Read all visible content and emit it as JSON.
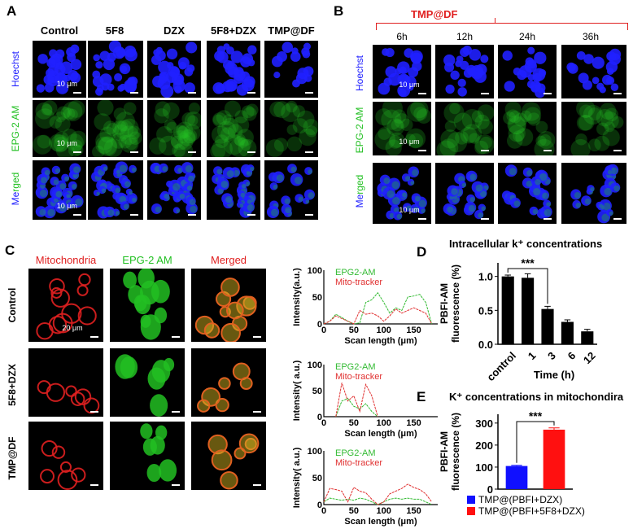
{
  "panels": {
    "A": {
      "label": "A",
      "columns": [
        "Control",
        "5F8",
        "DZX",
        "5F8+DZX",
        "TMP@DF"
      ],
      "rows": [
        {
          "label": "Hoechst",
          "channel": "blue"
        },
        {
          "label": "EPG-2 AM",
          "channel": "green"
        },
        {
          "label": "Merged",
          "channel": "merged"
        }
      ],
      "scale_label": "10 μm"
    },
    "B": {
      "label": "B",
      "group_label": "TMP@DF",
      "columns": [
        "6h",
        "12h",
        "24h",
        "36h"
      ],
      "rows": [
        {
          "label": "Hoechst",
          "channel": "blue"
        },
        {
          "label": "EPG-2 AM",
          "channel": "green"
        },
        {
          "label": "Merged",
          "channel": "merged"
        }
      ],
      "scale_label": "10 μm"
    },
    "C": {
      "label": "C",
      "columns": [
        "Mitochondria",
        "EPG-2 AM",
        "Merged"
      ],
      "rows": [
        "Control",
        "5F8+DZX",
        "TMP@DF"
      ],
      "scale_label": "20 μm"
    },
    "D": {
      "label": "D"
    },
    "E": {
      "label": "E"
    }
  },
  "colors": {
    "hoechst": "#2020ff",
    "epg": "#22c022",
    "mito": "#e02020",
    "group_label": "#e02020"
  },
  "chart_data": [
    {
      "id": "C-control",
      "type": "line",
      "xlabel": "Scan length (μm)",
      "ylabel": "Intensity(a.u.)",
      "xlim": [
        0,
        190
      ],
      "ylim": [
        0,
        100
      ],
      "xticks": [
        0,
        50,
        100,
        150
      ],
      "yticks": [
        0,
        50,
        100
      ],
      "x": [
        0,
        10,
        20,
        30,
        40,
        50,
        60,
        70,
        80,
        90,
        100,
        110,
        120,
        130,
        140,
        150,
        160,
        170,
        180
      ],
      "series": [
        {
          "name": "EPG2-AM",
          "color": "#33bb33",
          "values": [
            0,
            5,
            18,
            12,
            5,
            0,
            2,
            40,
            45,
            58,
            40,
            20,
            30,
            25,
            50,
            52,
            55,
            40,
            0
          ]
        },
        {
          "name": "Mito-tracker",
          "color": "#e03030",
          "values": [
            0,
            5,
            15,
            10,
            5,
            0,
            25,
            18,
            20,
            15,
            5,
            15,
            28,
            20,
            25,
            30,
            25,
            20,
            0
          ]
        }
      ]
    },
    {
      "id": "C-5f8dzx",
      "type": "line",
      "xlabel": "Scan length (μm)",
      "ylabel": "Intensity( a.u.)",
      "xlim": [
        0,
        190
      ],
      "ylim": [
        0,
        100
      ],
      "xticks": [
        0,
        50,
        100,
        150
      ],
      "yticks": [
        0,
        50,
        100
      ],
      "x": [
        20,
        30,
        40,
        50,
        60,
        70,
        80,
        90
      ],
      "series": [
        {
          "name": "EPG2-AM",
          "color": "#33bb33",
          "values": [
            0,
            30,
            35,
            20,
            15,
            25,
            10,
            0
          ]
        },
        {
          "name": "Mito-tracker",
          "color": "#e03030",
          "values": [
            0,
            65,
            30,
            40,
            10,
            62,
            40,
            0
          ]
        }
      ]
    },
    {
      "id": "C-tmpdf",
      "type": "line",
      "xlabel": "Scan length (μm)",
      "ylabel": "Intensity( a.u.)",
      "xlim": [
        0,
        190
      ],
      "ylim": [
        0,
        100
      ],
      "xticks": [
        0,
        50,
        100,
        150
      ],
      "yticks": [
        0,
        50,
        100
      ],
      "x": [
        0,
        10,
        20,
        30,
        40,
        50,
        60,
        70,
        80,
        90,
        100,
        110,
        120,
        130,
        140,
        150,
        160,
        170,
        180
      ],
      "series": [
        {
          "name": "EPG2-AM",
          "color": "#33bb33",
          "values": [
            5,
            12,
            10,
            8,
            10,
            8,
            12,
            10,
            5,
            0,
            5,
            10,
            12,
            10,
            12,
            10,
            10,
            5,
            0
          ]
        },
        {
          "name": "Mito-tracker",
          "color": "#e03030",
          "values": [
            5,
            30,
            28,
            25,
            5,
            32,
            25,
            22,
            10,
            0,
            5,
            20,
            25,
            30,
            38,
            32,
            28,
            20,
            5
          ]
        }
      ]
    },
    {
      "id": "D",
      "type": "bar",
      "title": "Intracellular k⁺ concentrations",
      "xlabel": "Time (h)",
      "ylabel": "PBFI-AM fluorescence (%)",
      "categories": [
        "control",
        "1",
        "3",
        "6",
        "12"
      ],
      "values": [
        1.0,
        0.98,
        0.52,
        0.33,
        0.19
      ],
      "errors": [
        0.02,
        0.06,
        0.04,
        0.03,
        0.03
      ],
      "ylim": [
        0,
        1.2
      ],
      "yticks": [
        "0.0",
        "0.5",
        "1.0"
      ],
      "color": "#000000",
      "significance": {
        "from": "control",
        "to": "3",
        "label": "***"
      }
    },
    {
      "id": "E",
      "type": "bar",
      "title": "K⁺ concentrations in mitochondira",
      "ylabel": "PBFI-AM fluorescence (%)",
      "categories": [
        "TMP@(PBFI+DZX)",
        "TMP@(PBFI+5F8+DZX)"
      ],
      "values": [
        105,
        270
      ],
      "errors": [
        3,
        8
      ],
      "colors": [
        "#1010ff",
        "#ff1010"
      ],
      "ylim": [
        0,
        340
      ],
      "yticks": [
        "0",
        "100",
        "200",
        "300"
      ],
      "significance": {
        "from": "TMP@(PBFI+DZX)",
        "to": "TMP@(PBFI+5F8+DZX)",
        "label": "***"
      },
      "legend": "bottom"
    }
  ]
}
